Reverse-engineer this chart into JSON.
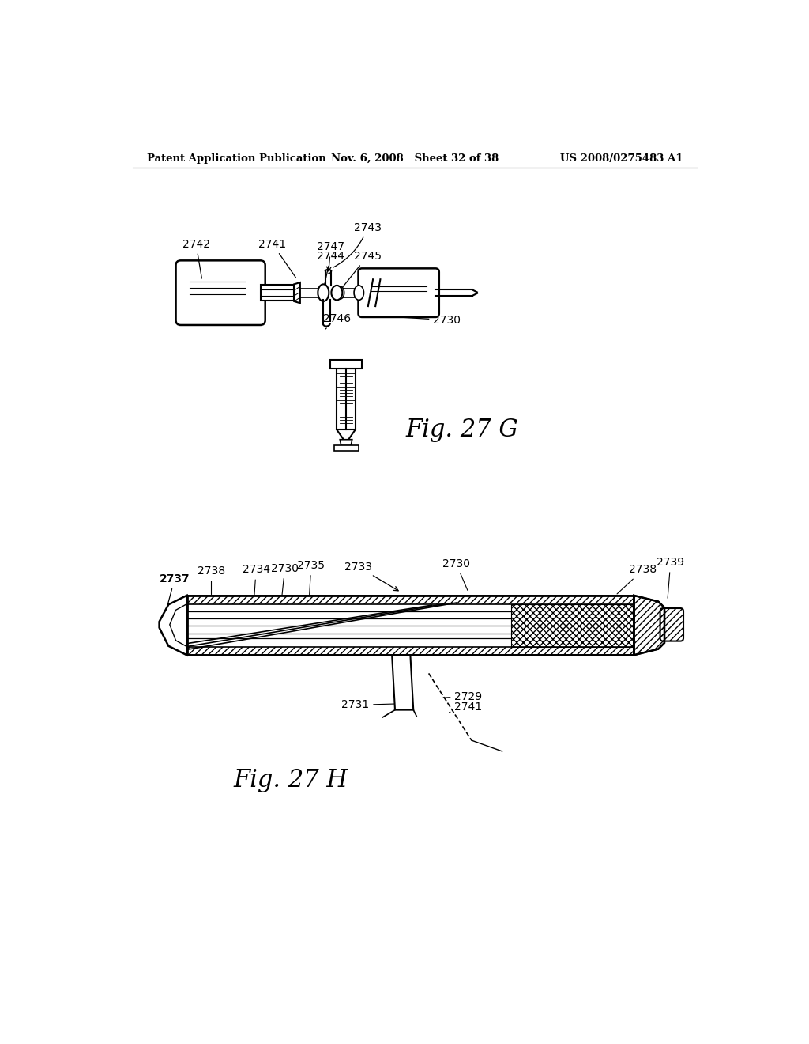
{
  "bg_color": "#ffffff",
  "header_left": "Patent Application Publication",
  "header_mid": "Nov. 6, 2008   Sheet 32 of 38",
  "header_right": "US 2008/0275483 A1",
  "fig_g_label": "Fig. 27 G",
  "fig_h_label": "Fig. 27 H"
}
